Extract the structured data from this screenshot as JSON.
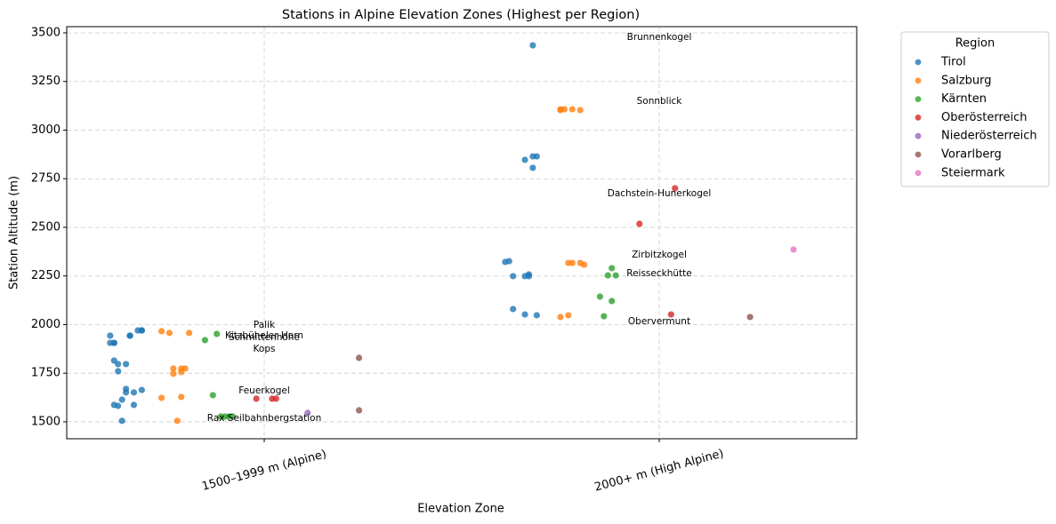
{
  "chart_data": {
    "type": "strip",
    "title": "Stations in Alpine Elevation Zones (Highest per Region)",
    "x_label": "Elevation Zone",
    "y_label": "Station Altitude (m)",
    "legend_title": "Region",
    "legend_position": "outside right",
    "grid": true,
    "xlim": [
      -0.5,
      1.5
    ],
    "xticks": [
      {
        "value": 0,
        "label": "1500–1999 m (Alpine)"
      },
      {
        "value": 1,
        "label": "2000+ m (High Alpine)"
      }
    ],
    "ylim": [
      1413,
      3532
    ],
    "yticks": [
      1500,
      1750,
      2000,
      2250,
      2500,
      2750,
      3000,
      3250,
      3500
    ],
    "series": [
      {
        "name": "Tirol",
        "color": "#1f77b4",
        "x": [
          -0.39,
          -0.38,
          -0.39,
          -0.38,
          -0.34,
          -0.34,
          -0.32,
          -0.31,
          -0.31,
          -0.38,
          -0.37,
          -0.35,
          -0.37,
          -0.35,
          -0.35,
          -0.33,
          -0.31,
          -0.36,
          -0.38,
          -0.37,
          -0.33,
          -0.36,
          0.68,
          0.66,
          0.68,
          0.69,
          0.68,
          0.61,
          0.62,
          0.63,
          0.66,
          0.67,
          0.67,
          0.63,
          0.66,
          0.69
        ],
        "values": [
          1943,
          1906,
          1906,
          1906,
          1943,
          1943,
          1970,
          1970,
          1970,
          1815,
          1797,
          1797,
          1760,
          1669,
          1651,
          1651,
          1664,
          1614,
          1587,
          1582,
          1587,
          1505,
          3436,
          2847,
          2865,
          2865,
          2806,
          2322,
          2326,
          2249,
          2249,
          2258,
          2249,
          2080,
          2052,
          2048
        ]
      },
      {
        "name": "Salzburg",
        "color": "#ff7f0e",
        "x": [
          -0.26,
          -0.24,
          -0.19,
          -0.23,
          -0.21,
          -0.2,
          -0.23,
          -0.21,
          -0.26,
          -0.21,
          -0.22,
          0.75,
          0.75,
          0.76,
          0.78,
          0.8,
          0.77,
          0.78,
          0.8,
          0.81,
          0.75,
          0.77
        ],
        "values": [
          1966,
          1957,
          1957,
          1774,
          1774,
          1774,
          1747,
          1756,
          1623,
          1628,
          1505,
          3103,
          3107,
          3107,
          3107,
          3103,
          2317,
          2317,
          2317,
          2308,
          2039,
          2048
        ]
      },
      {
        "name": "Kärnten",
        "color": "#2ca02c",
        "x": [
          -0.15,
          -0.12,
          -0.13,
          -0.11,
          -0.1,
          -0.09,
          -0.08,
          0.88,
          0.87,
          0.89,
          0.85,
          0.88,
          0.86
        ],
        "values": [
          1920,
          1952,
          1637,
          1527,
          1527,
          1527,
          1527,
          2290,
          2253,
          2253,
          2144,
          2121,
          2043
        ]
      },
      {
        "name": "Oberösterreich",
        "color": "#d62728",
        "x": [
          -0.02,
          0.02,
          0.03,
          1.04,
          0.95,
          1.03
        ],
        "values": [
          1619,
          1619,
          1619,
          2701,
          2518,
          2052
        ]
      },
      {
        "name": "Niederösterreich",
        "color": "#9467bd",
        "x": [
          0.11
        ],
        "values": [
          1546
        ]
      },
      {
        "name": "Vorarlberg",
        "color": "#8c564b",
        "x": [
          0.24,
          0.24,
          1.23
        ],
        "values": [
          1829,
          1559,
          2039
        ]
      },
      {
        "name": "Steiermark",
        "color": "#e377c2",
        "x": [
          1.34
        ],
        "values": [
          2386
        ]
      }
    ],
    "annotations": [
      {
        "text": "Brunnenkogel",
        "x": 1.0,
        "y": 3477
      },
      {
        "text": "Sonnblick",
        "x": 1.0,
        "y": 3148
      },
      {
        "text": "Dachstein-Hunerkogel",
        "x": 1.0,
        "y": 2674
      },
      {
        "text": "Zirbitzkogel",
        "x": 1.0,
        "y": 2358
      },
      {
        "text": "Reisseckhütte",
        "x": 1.0,
        "y": 2263
      },
      {
        "text": "Obervermunt",
        "x": 1.0,
        "y": 2016
      },
      {
        "text": "Palik",
        "x": 0,
        "y": 1998
      },
      {
        "text": "Kitzbüheler Horn",
        "x": 0,
        "y": 1943
      },
      {
        "text": "Schmittenhöhe",
        "x": 0,
        "y": 1934
      },
      {
        "text": "Kops",
        "x": 0,
        "y": 1874
      },
      {
        "text": "Feuerkogel",
        "x": 0,
        "y": 1660
      },
      {
        "text": "Rax Seilbahnbergstation",
        "x": 0,
        "y": 1518
      }
    ]
  }
}
